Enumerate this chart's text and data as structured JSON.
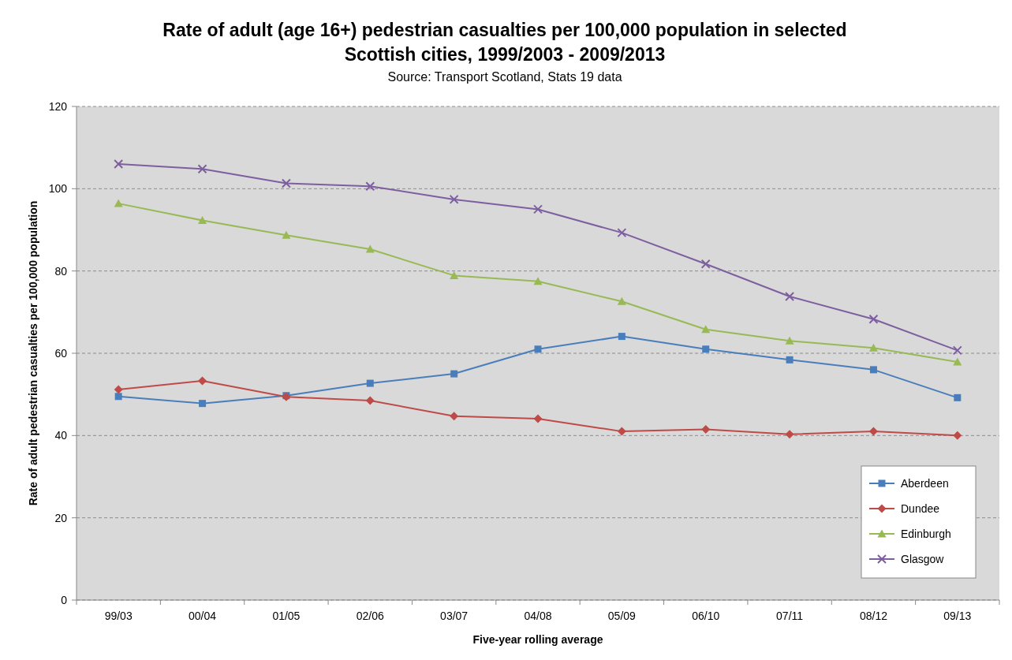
{
  "chart_data": {
    "type": "line",
    "title": "Rate of adult (age 16+) pedestrian casualties per 100,000 population in selected Scottish cities, 1999/2003 - 2009/2013",
    "subtitle": "Source: Transport Scotland, Stats 19 data",
    "xlabel": "Five-year rolling average",
    "ylabel": "Rate of adult pedestrian casualties per 100,000 population",
    "categories": [
      "99/03",
      "00/04",
      "01/05",
      "02/06",
      "03/07",
      "04/08",
      "05/09",
      "06/10",
      "07/11",
      "08/12",
      "09/13"
    ],
    "series": [
      {
        "name": "Aberdeen",
        "color": "#4a7ebb",
        "marker": "square",
        "values": [
          49.5,
          47.8,
          49.7,
          52.7,
          55,
          61,
          64.1,
          61,
          58.4,
          56,
          49.2
        ]
      },
      {
        "name": "Dundee",
        "color": "#be4b48",
        "marker": "diamond",
        "values": [
          51.2,
          53.3,
          49.4,
          48.5,
          44.7,
          44.1,
          41,
          41.5,
          40.3,
          41,
          40
        ]
      },
      {
        "name": "Edinburgh",
        "color": "#98b954",
        "marker": "triangle",
        "values": [
          96.4,
          92.3,
          88.7,
          85.3,
          78.9,
          77.5,
          72.6,
          65.8,
          63,
          61.3,
          57.9
        ]
      },
      {
        "name": "Glasgow",
        "color": "#7d5fa0",
        "marker": "cross",
        "values": [
          106,
          104.8,
          101.3,
          100.6,
          97.4,
          95,
          89.3,
          81.7,
          73.8,
          68.3,
          60.7
        ]
      }
    ],
    "ylim": [
      0,
      120
    ],
    "yticks": [
      0,
      20,
      40,
      60,
      80,
      100,
      120
    ],
    "grid": "y",
    "legend": "bottom right",
    "line_style": "solid"
  }
}
